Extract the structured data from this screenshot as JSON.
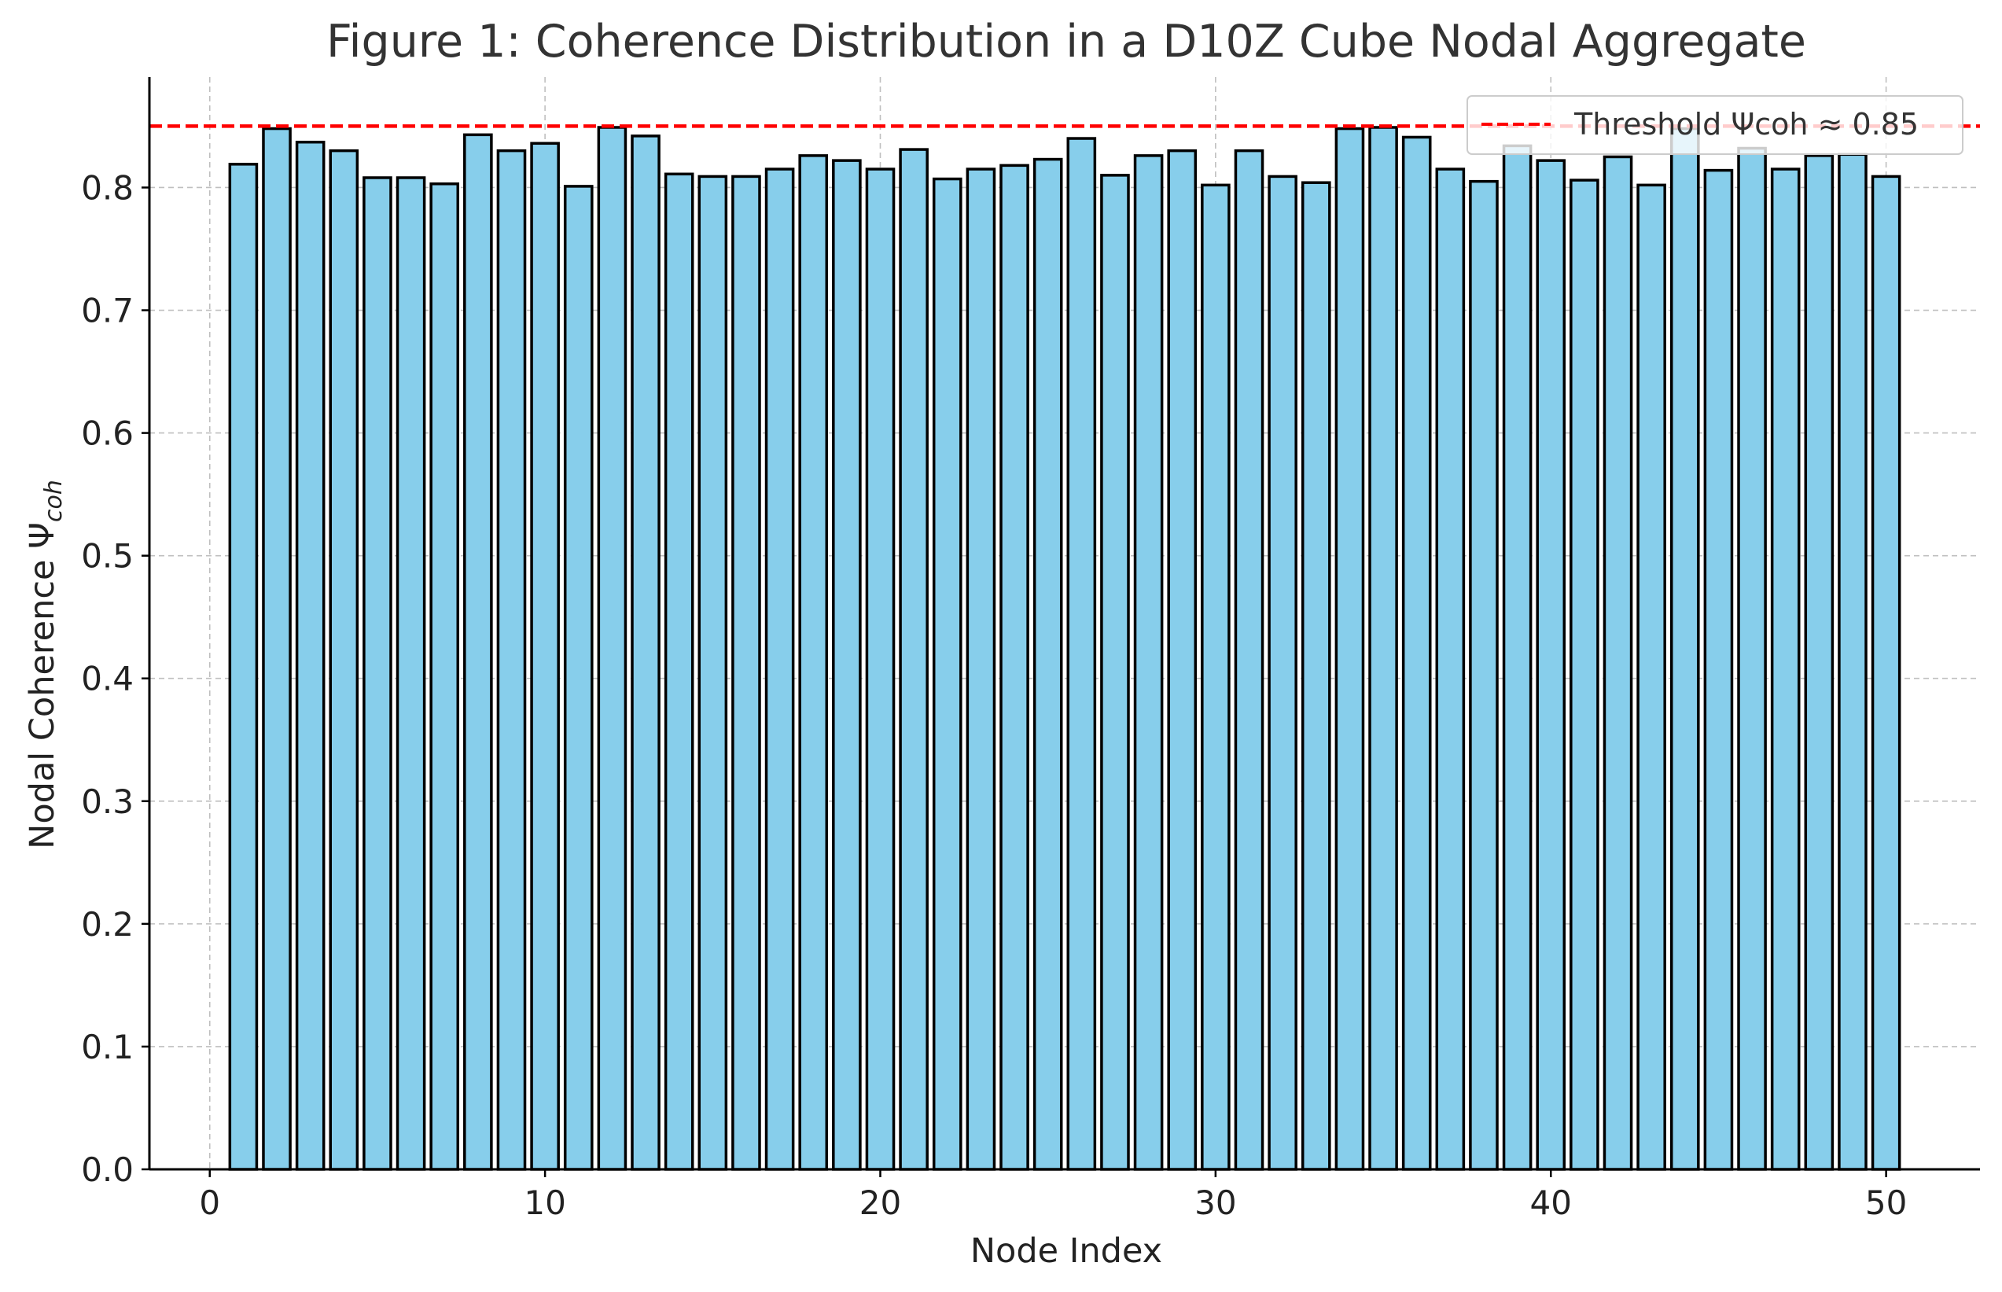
{
  "chart_data": {
    "type": "bar",
    "title": "Figure 1: Coherence Distribution in a D10Z Cube Nodal Aggregate",
    "xlabel": "Node Index",
    "ylabel": "Nodal Coherence Ψ",
    "ylabel_subscript": "coh",
    "x": [
      1,
      2,
      3,
      4,
      5,
      6,
      7,
      8,
      9,
      10,
      11,
      12,
      13,
      14,
      15,
      16,
      17,
      18,
      19,
      20,
      21,
      22,
      23,
      24,
      25,
      26,
      27,
      28,
      29,
      30,
      31,
      32,
      33,
      34,
      35,
      36,
      37,
      38,
      39,
      40,
      41,
      42,
      43,
      44,
      45,
      46,
      47,
      48,
      49,
      50
    ],
    "values": [
      0.819,
      0.848,
      0.837,
      0.83,
      0.808,
      0.808,
      0.803,
      0.843,
      0.83,
      0.836,
      0.801,
      0.849,
      0.842,
      0.811,
      0.809,
      0.809,
      0.815,
      0.826,
      0.822,
      0.815,
      0.831,
      0.807,
      0.815,
      0.818,
      0.823,
      0.84,
      0.81,
      0.826,
      0.83,
      0.802,
      0.83,
      0.809,
      0.804,
      0.848,
      0.849,
      0.841,
      0.815,
      0.805,
      0.834,
      0.822,
      0.806,
      0.825,
      0.802,
      0.848,
      0.814,
      0.832,
      0.815,
      0.826,
      0.827,
      0.809
    ],
    "bar_color": "#87ceeb",
    "bar_edge_color": "#000000",
    "xlim": [
      -1.8,
      52.8
    ],
    "ylim": [
      0.0,
      0.89
    ],
    "xticks": [
      0,
      10,
      20,
      30,
      40,
      50
    ],
    "xtick_labels": [
      "0",
      "10",
      "20",
      "30",
      "40",
      "50"
    ],
    "yticks": [
      0.0,
      0.1,
      0.2,
      0.3,
      0.4,
      0.5,
      0.6,
      0.7,
      0.8
    ],
    "ytick_labels": [
      "0.0",
      "0.1",
      "0.2",
      "0.3",
      "0.4",
      "0.5",
      "0.6",
      "0.7",
      "0.8"
    ],
    "grid": true,
    "threshold": {
      "value": 0.85,
      "color": "#ff0000",
      "style": "dashed",
      "label": "Threshold Ψcoh ≈ 0.85"
    },
    "legend": {
      "placement": "top-right",
      "entries": [
        "Threshold Ψcoh ≈ 0.85"
      ]
    }
  }
}
